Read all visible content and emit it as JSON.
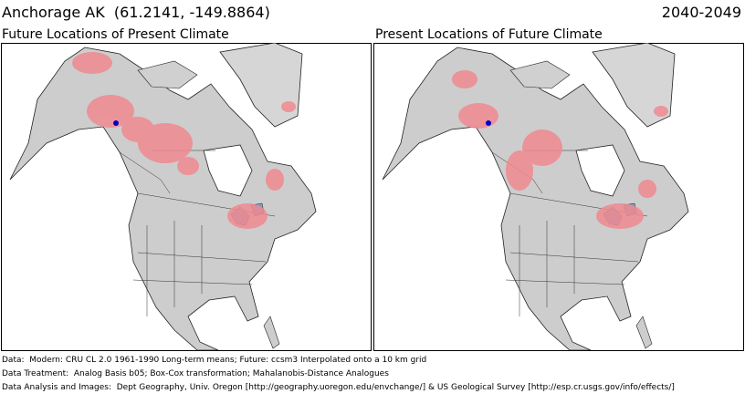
{
  "header": {
    "title": "Anchorage AK  (61.2141, -149.8864)",
    "period": "2040-2049"
  },
  "panels": [
    {
      "title": "Future Locations of Present Climate"
    },
    {
      "title": "Present Locations of Future Climate"
    }
  ],
  "footer": [
    "Data:  Modern: CRU CL 2.0 1961-1990 Long-term means; Future: ccsm3 Interpolated onto a 10 km grid",
    "Data Treatment:  Analog Basis b05; Box-Cox transformation; Mahalanobis-Distance Analogues",
    "Data Analysis and Images:  Dept Geography, Univ. Oregon [http://geography.uoregon.edu/envchange/] & US Geological Survey [http://esp.cr.usgs.gov/info/effects/]"
  ]
}
